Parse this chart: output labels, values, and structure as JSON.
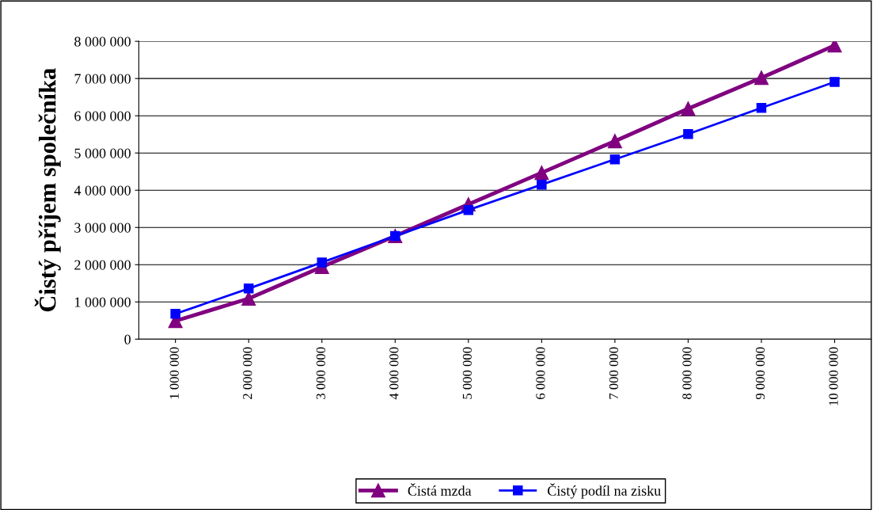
{
  "chart_data": {
    "type": "line",
    "ylabel": "Čistý příjem společníka",
    "categories": [
      "1 000 000",
      "2 000 000",
      "3 000 000",
      "4 000 000",
      "5 000 000",
      "6 000 000",
      "7 000 000",
      "8 000 000",
      "9 000 000",
      "10 000 000"
    ],
    "series": [
      {
        "name": "Čistá mzda",
        "color": "#800080",
        "marker": "triangle",
        "values": [
          490000,
          1090000,
          1940000,
          2770000,
          3620000,
          4470000,
          5320000,
          6190000,
          7020000,
          7890000
        ]
      },
      {
        "name": "Čistý podíl na zisku",
        "color": "#0000ff",
        "marker": "square",
        "values": [
          680000,
          1360000,
          2060000,
          2770000,
          3470000,
          4150000,
          4830000,
          5510000,
          6210000,
          6910000
        ]
      }
    ],
    "ylim": [
      0,
      8000000
    ],
    "yticks": [
      0,
      {
        "value": 1000000,
        "label": "1 000 000"
      },
      {
        "value": 2000000,
        "label": "2 000 000"
      },
      {
        "value": 3000000,
        "label": "3 000 000"
      },
      {
        "value": 4000000,
        "label": "4 000 000"
      },
      {
        "value": 5000000,
        "label": "5 000 000"
      },
      {
        "value": 6000000,
        "label": "6 000 000"
      },
      {
        "value": 7000000,
        "label": "7 000 000"
      },
      {
        "value": 8000000,
        "label": "8 000 000"
      }
    ],
    "grid": "y",
    "legend": "bottom",
    "line_style": "solid"
  }
}
